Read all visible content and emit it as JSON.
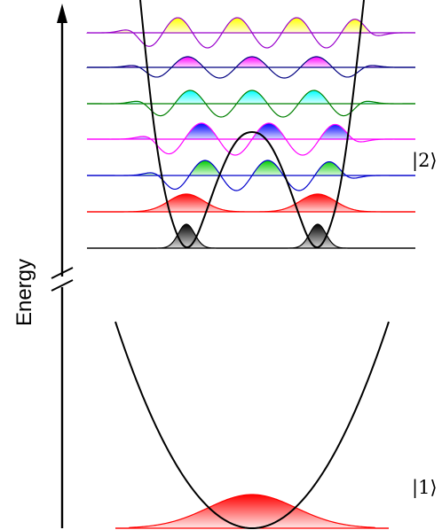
{
  "axis": {
    "label": "Energy"
  },
  "states": {
    "upper": {
      "label": "|2⟩"
    },
    "lower": {
      "label": "|1⟩"
    }
  },
  "colors": {
    "axis": "#000000",
    "potential": "#000000",
    "levels": [
      "#000000",
      "#ff0000",
      "#0000cc",
      "#ff00ff",
      "#008000",
      "#000080",
      "#9900cc"
    ],
    "fills": [
      "#000000",
      "#ff0000",
      "#00cc00",
      "#0000ff",
      "#00ffff",
      "#ff00ff",
      "#ffff00"
    ],
    "ground_state": "#ff0000"
  }
}
